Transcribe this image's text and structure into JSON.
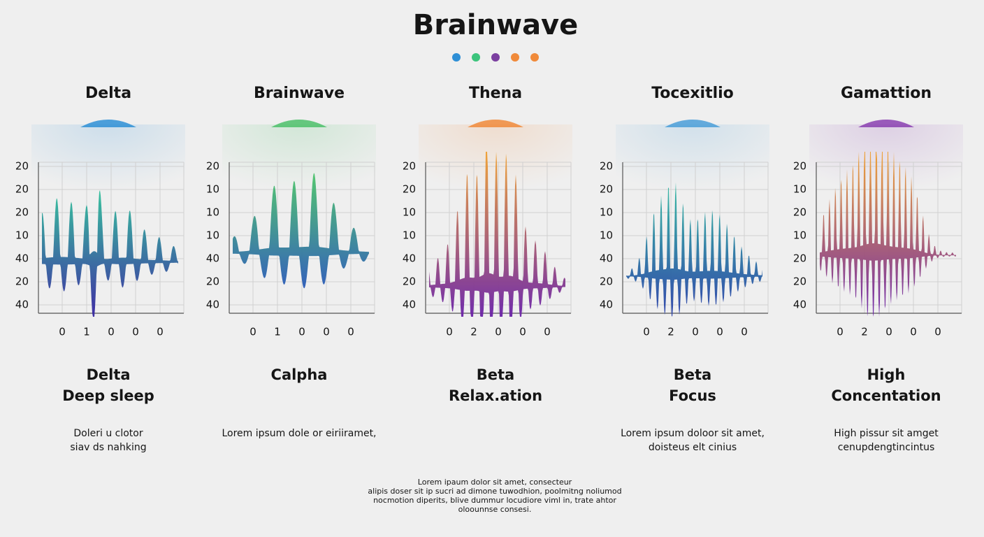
{
  "header": {
    "title": "Brainwave"
  },
  "panels": [
    {
      "heading": "Delta",
      "y_labels": [
        "20",
        "20",
        "20",
        "10",
        "40",
        "20",
        "40"
      ],
      "x_labels": [
        "0",
        "1",
        "0",
        "0",
        "0"
      ],
      "caption": [
        "Delta",
        "Deep sleep"
      ],
      "description": [
        "Doleri u clotor",
        "siav ds nahking"
      ]
    },
    {
      "heading": "Brainwave",
      "y_labels": [
        "20",
        "10",
        "10",
        "10",
        "40",
        "20",
        "40"
      ],
      "x_labels": [
        "0",
        "1",
        "0",
        "0",
        "0"
      ],
      "caption": [
        "Calpha"
      ],
      "description": [
        "Lorem ipsum dole or eiriiramet,"
      ]
    },
    {
      "heading": "Thena",
      "y_labels": [
        "20",
        "20",
        "10",
        "10",
        "40",
        "20",
        "40"
      ],
      "x_labels": [
        "0",
        "2",
        "0",
        "0",
        "0"
      ],
      "caption": [
        "Beta",
        "Relax.ation"
      ]
    },
    {
      "heading": "Tocexitlio",
      "y_labels": [
        "20",
        "20",
        "10",
        "10",
        "40",
        "20",
        "40"
      ],
      "x_labels": [
        "0",
        "2",
        "0",
        "0",
        "0"
      ],
      "caption": [
        "Beta",
        "Focus"
      ],
      "description": [
        "Lorem ipsum doloor sit amet,",
        "doisteus elt cinius"
      ]
    },
    {
      "heading": "Gamattion",
      "y_labels": [
        "20",
        "10",
        "20",
        "10",
        "20",
        "20",
        "40"
      ],
      "x_labels": [
        "0",
        "2",
        "0",
        "0",
        "0"
      ],
      "caption": [
        "High",
        "Concentation"
      ],
      "description": [
        "High pissur sit amget",
        "cenupdengtincintus"
      ]
    }
  ],
  "footer": {
    "lines": [
      "Lorem ipaum dolor sit amet, consecteur",
      "alipis doser sit ip sucri ad dimone tuwodhion, poolmitng noliumod",
      "nocmotion diperits, blive dummur locudiore viml in, trate ahtor",
      "oloounnse consesi."
    ]
  }
}
